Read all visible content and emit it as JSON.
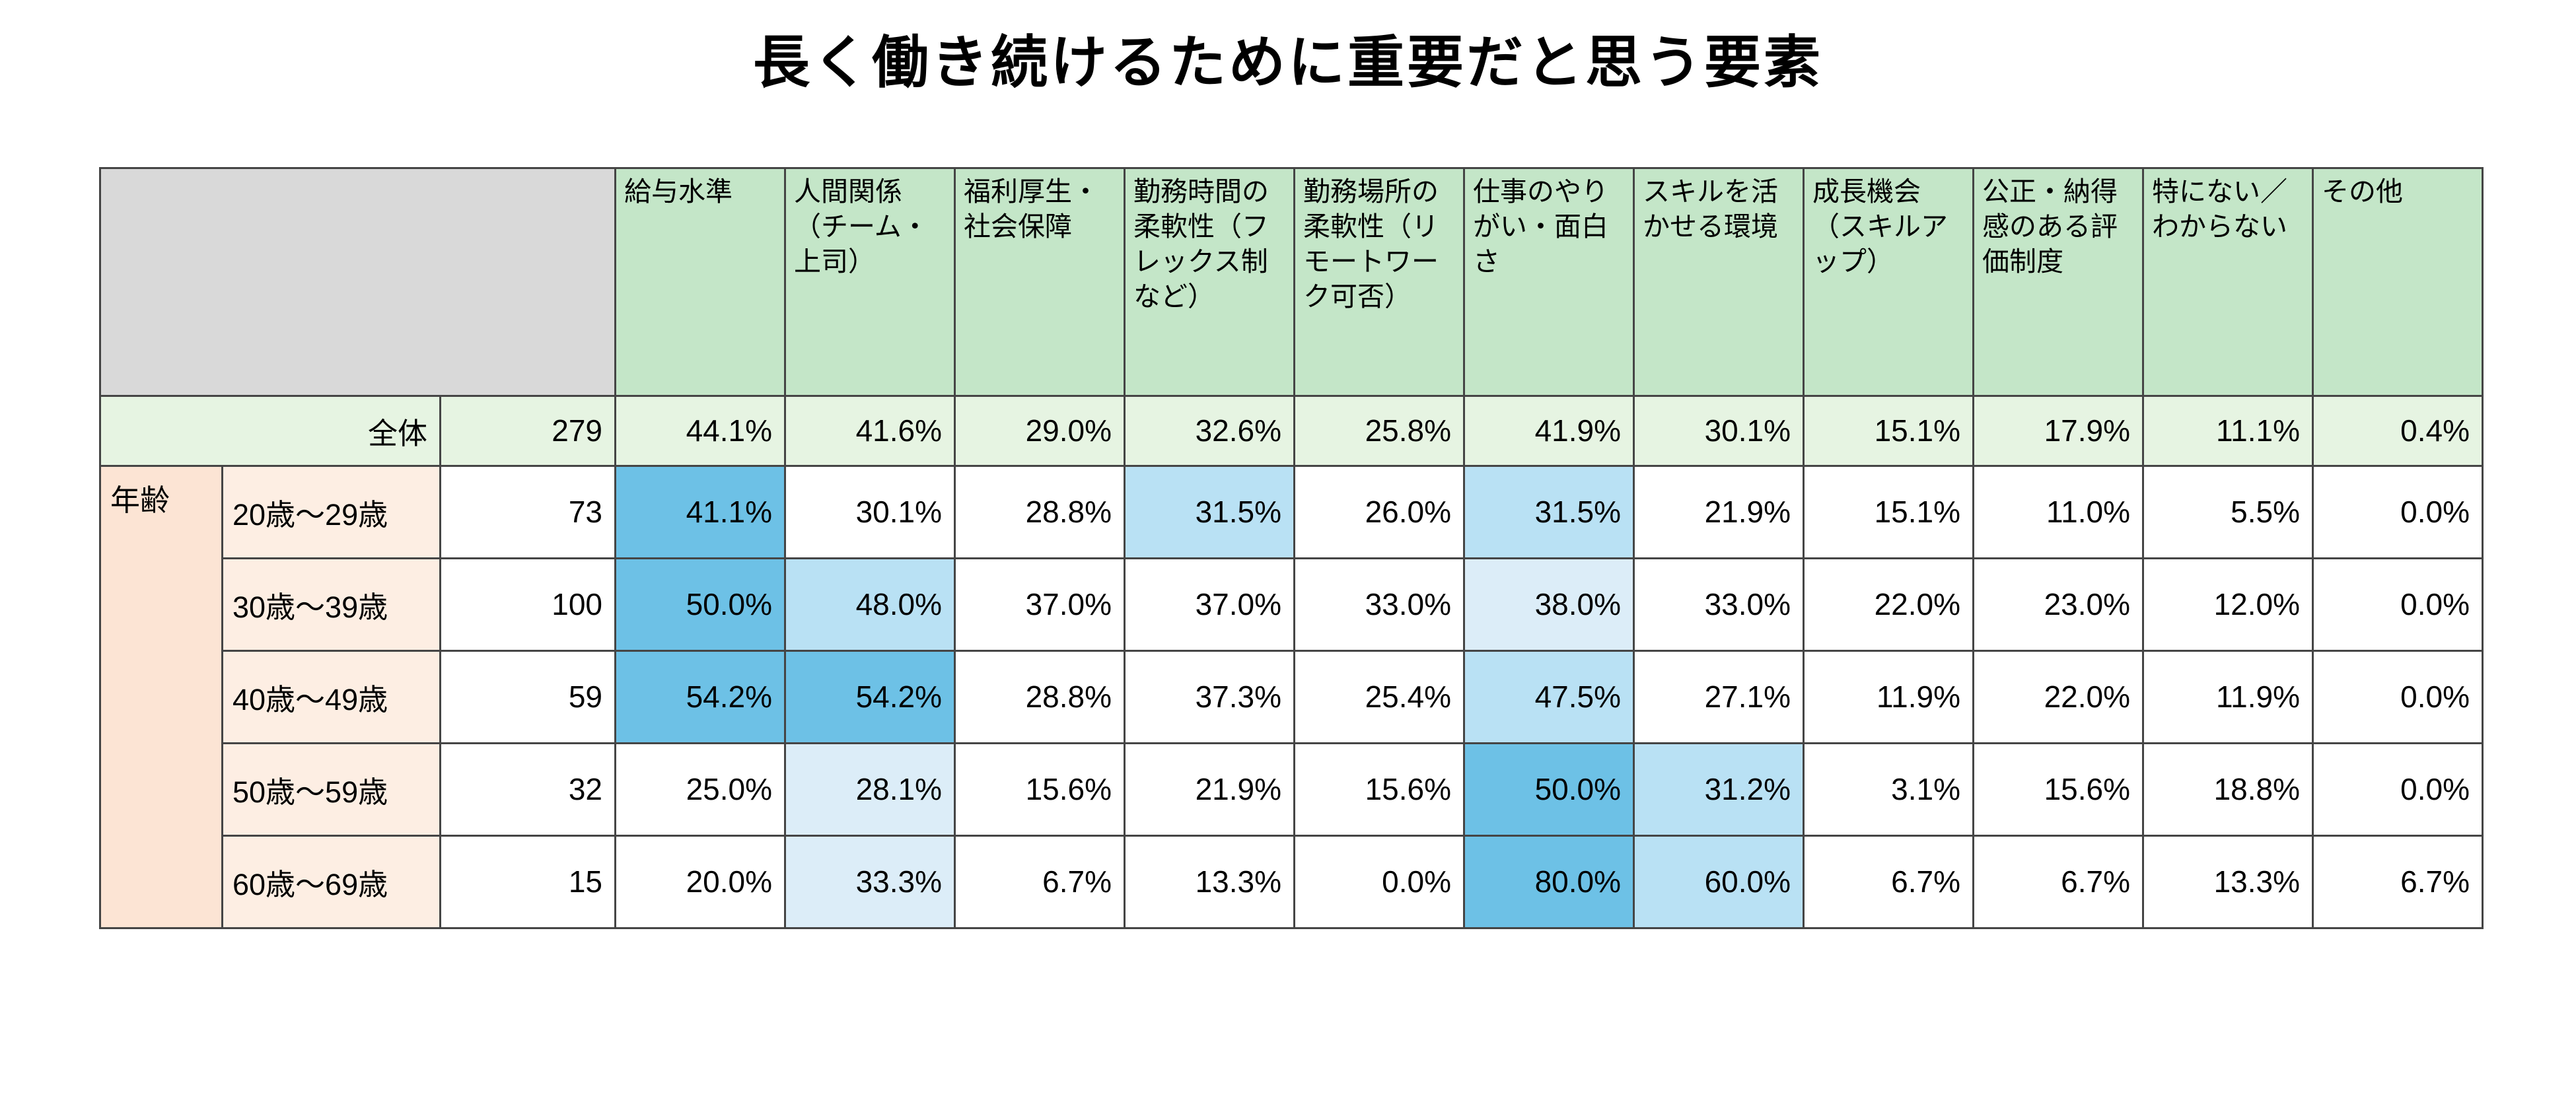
{
  "title": "長く働き続けるために重要だと思う要素",
  "colors": {
    "corner_gray": "#d9d9d9",
    "header_green": "#c4e6c8",
    "total_green": "#e6f4e2",
    "group_peach": "#fce4d4",
    "label_peach": "#fdeee3",
    "hl1": "#6dc1e6",
    "hl2": "#b9e1f4",
    "hl3": "#dcedf8",
    "border": "#454545"
  },
  "chart_data": {
    "type": "table",
    "title": "長く働き続けるために重要だと思う要素",
    "group_label": "年齢",
    "columns": [
      "給与水準",
      "人間関係（チーム・上司）",
      "福利厚生・社会保障",
      "勤務時間の柔軟性（フレックス制など）",
      "勤務場所の柔軟性（リモートワーク可否）",
      "仕事のやりがい・面白さ",
      "スキルを活かせる環境",
      "成長機会（スキルアップ）",
      "公正・納得感のある評価制度",
      "特にない／わからない",
      "その他"
    ],
    "rows": [
      {
        "label": "全体",
        "n": 279,
        "row_type": "total",
        "values": [
          "44.1%",
          "41.6%",
          "29.0%",
          "32.6%",
          "25.8%",
          "41.9%",
          "30.1%",
          "15.1%",
          "17.9%",
          "11.1%",
          "0.4%"
        ],
        "highlights": [
          0,
          0,
          0,
          0,
          0,
          0,
          0,
          0,
          0,
          0,
          0
        ]
      },
      {
        "label": "20歳～29歳",
        "n": 73,
        "row_type": "age",
        "values": [
          "41.1%",
          "30.1%",
          "28.8%",
          "31.5%",
          "26.0%",
          "31.5%",
          "21.9%",
          "15.1%",
          "11.0%",
          "5.5%",
          "0.0%"
        ],
        "highlights": [
          1,
          0,
          0,
          2,
          0,
          2,
          0,
          0,
          0,
          0,
          0
        ]
      },
      {
        "label": "30歳～39歳",
        "n": 100,
        "row_type": "age",
        "values": [
          "50.0%",
          "48.0%",
          "37.0%",
          "37.0%",
          "33.0%",
          "38.0%",
          "33.0%",
          "22.0%",
          "23.0%",
          "12.0%",
          "0.0%"
        ],
        "highlights": [
          1,
          2,
          0,
          0,
          0,
          3,
          0,
          0,
          0,
          0,
          0
        ]
      },
      {
        "label": "40歳～49歳",
        "n": 59,
        "row_type": "age",
        "values": [
          "54.2%",
          "54.2%",
          "28.8%",
          "37.3%",
          "25.4%",
          "47.5%",
          "27.1%",
          "11.9%",
          "22.0%",
          "11.9%",
          "0.0%"
        ],
        "highlights": [
          1,
          1,
          0,
          0,
          0,
          2,
          0,
          0,
          0,
          0,
          0
        ]
      },
      {
        "label": "50歳～59歳",
        "n": 32,
        "row_type": "age",
        "values": [
          "25.0%",
          "28.1%",
          "15.6%",
          "21.9%",
          "15.6%",
          "50.0%",
          "31.2%",
          "3.1%",
          "15.6%",
          "18.8%",
          "0.0%"
        ],
        "highlights": [
          0,
          3,
          0,
          0,
          0,
          1,
          2,
          0,
          0,
          0,
          0
        ]
      },
      {
        "label": "60歳～69歳",
        "n": 15,
        "row_type": "age",
        "values": [
          "20.0%",
          "33.3%",
          "6.7%",
          "13.3%",
          "0.0%",
          "80.0%",
          "60.0%",
          "6.7%",
          "6.7%",
          "13.3%",
          "6.7%"
        ],
        "highlights": [
          0,
          3,
          0,
          0,
          0,
          1,
          2,
          0,
          0,
          0,
          0
        ]
      }
    ]
  }
}
